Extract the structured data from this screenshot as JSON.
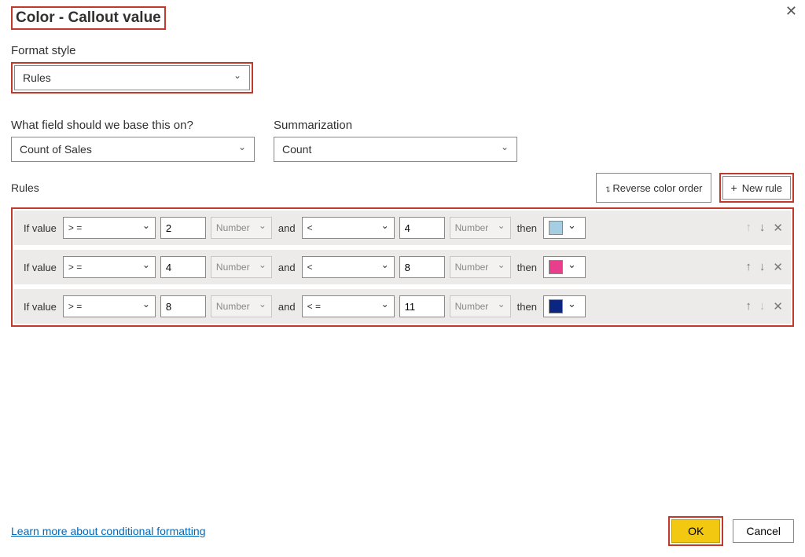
{
  "dialog": {
    "title": "Color - Callout value"
  },
  "formatStyle": {
    "label": "Format style",
    "value": "Rules"
  },
  "baseField": {
    "label": "What field should we base this on?",
    "value": "Count of Sales"
  },
  "summarization": {
    "label": "Summarization",
    "value": "Count"
  },
  "rulesHeader": {
    "label": "Rules",
    "reverse": "Reverse color order",
    "newRule": "New rule"
  },
  "ruleRows": [
    {
      "ifLabel": "If value",
      "op1": "> =",
      "val1": "2",
      "type1": "Number",
      "andLabel": "and",
      "op2": "<",
      "val2": "4",
      "type2": "Number",
      "thenLabel": "then",
      "color": "#a6cee3",
      "upDisabled": true,
      "downDisabled": false
    },
    {
      "ifLabel": "If value",
      "op1": "> =",
      "val1": "4",
      "type1": "Number",
      "andLabel": "and",
      "op2": "<",
      "val2": "8",
      "type2": "Number",
      "thenLabel": "then",
      "color": "#e83e8c",
      "upDisabled": false,
      "downDisabled": false
    },
    {
      "ifLabel": "If value",
      "op1": "> =",
      "val1": "8",
      "type1": "Number",
      "andLabel": "and",
      "op2": "< =",
      "val2": "11",
      "type2": "Number",
      "thenLabel": "then",
      "color": "#0a2680",
      "upDisabled": false,
      "downDisabled": true
    }
  ],
  "footer": {
    "link": "Learn more about conditional formatting",
    "ok": "OK",
    "cancel": "Cancel"
  }
}
